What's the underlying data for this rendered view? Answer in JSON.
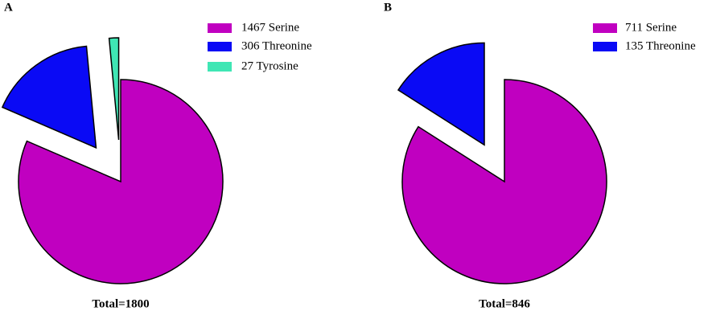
{
  "chart_data": [
    {
      "type": "pie",
      "panel_label": "A",
      "total_label": "Total=1800",
      "categories": [
        "1467 Serine",
        "306 Threonine",
        "27 Tyrosine"
      ],
      "values": [
        1467,
        306,
        27
      ],
      "colors": [
        "#c000c0",
        "#0a0af5",
        "#3fe6b4"
      ]
    },
    {
      "type": "pie",
      "panel_label": "B",
      "total_label": "Total=846",
      "categories": [
        "711 Serine",
        "135 Threonine"
      ],
      "values": [
        711,
        135
      ],
      "colors": [
        "#c000c0",
        "#0a0af5"
      ]
    }
  ]
}
